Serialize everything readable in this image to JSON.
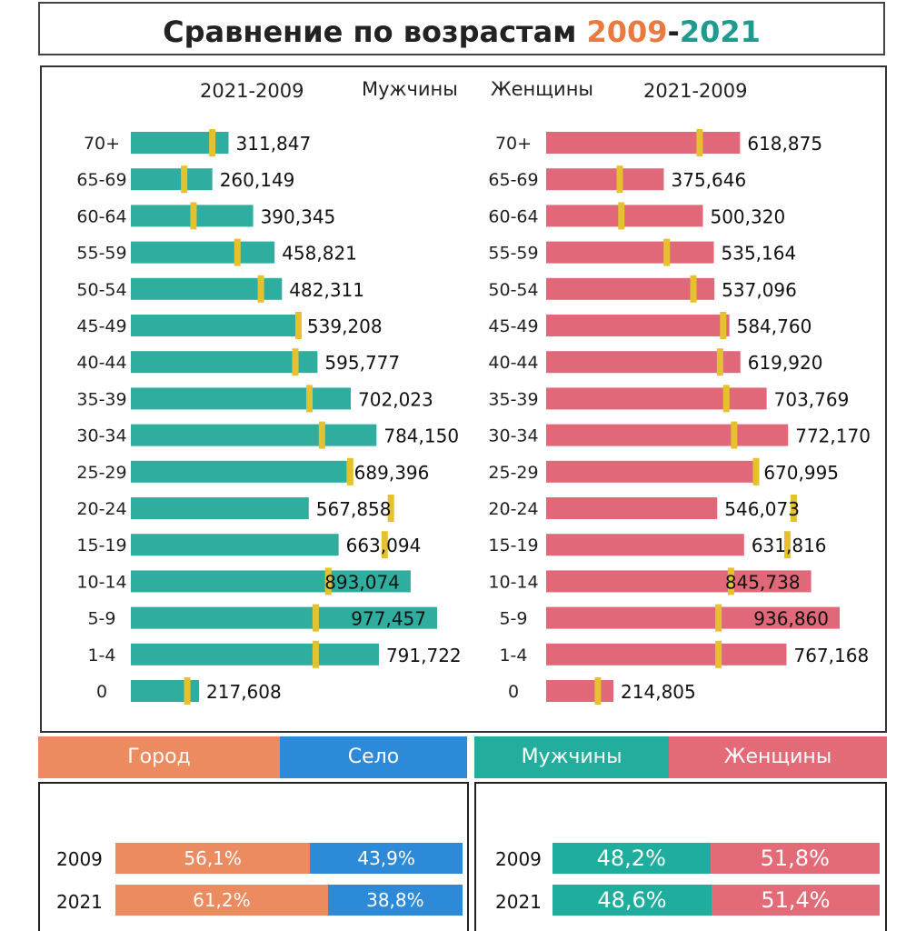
{
  "title": {
    "prefix": "Сравнение по возрастам ",
    "year_a": "2009",
    "dash": "-",
    "year_b": "2021"
  },
  "colors": {
    "men": "#2fae9f",
    "women": "#e06878",
    "marker": "#e6c12e",
    "city": "#eb8b5f",
    "village": "#2d8ad8",
    "year_a": "#e8793f",
    "year_b": "#1f9a8e"
  },
  "headers": {
    "left_years": "2021-2009",
    "men": "Мужчины",
    "women": "Женщины",
    "right_years": "2021-2009"
  },
  "legends": {
    "residence": {
      "city": "Город",
      "village": "Село"
    },
    "sex": {
      "men": "Мужчины",
      "women": "Женщины"
    }
  },
  "residence_share": {
    "rows": [
      {
        "year": "2009",
        "city": "56,1%",
        "village": "43,9%",
        "city_value": 56.1
      },
      {
        "year": "2021",
        "city": "61,2%",
        "village": "38,8%",
        "city_value": 61.2
      }
    ]
  },
  "sex_share": {
    "rows": [
      {
        "year": "2009",
        "men": "48,2%",
        "women": "51,8%",
        "men_value": 48.2
      },
      {
        "year": "2021",
        "men": "48,6%",
        "women": "51,4%",
        "men_value": 48.6
      }
    ]
  },
  "chart_data": {
    "type": "bar",
    "categories": [
      "70+",
      "65-69",
      "60-64",
      "55-59",
      "50-54",
      "45-49",
      "40-44",
      "35-39",
      "30-34",
      "25-29",
      "20-24",
      "15-19",
      "10-14",
      "5-9",
      "1-4",
      "0"
    ],
    "series": [
      {
        "name": "Мужчины",
        "values": [
          311847,
          260149,
          390345,
          458821,
          482311,
          539208,
          595777,
          702023,
          784150,
          689396,
          567858,
          663094,
          893074,
          977457,
          791722,
          217608
        ],
        "labels": [
          "311,847",
          "260,149",
          "390,345",
          "458,821",
          "482,311",
          "539,208",
          "595,777",
          "702,023",
          "784,150",
          "689,396",
          "567,858",
          "663,094",
          "893,074",
          "977,457",
          "791,722",
          "217,608"
        ],
        "values_2009": [
          260000,
          170000,
          200000,
          340000,
          415000,
          535000,
          525000,
          570000,
          610000,
          700000,
          830000,
          810000,
          630000,
          590000,
          590000,
          180000
        ]
      },
      {
        "name": "Женщины",
        "values": [
          618875,
          375646,
          500320,
          535164,
          537096,
          584760,
          619920,
          703769,
          772170,
          670995,
          546073,
          631816,
          845738,
          936860,
          767168,
          214805
        ],
        "labels": [
          "618,875",
          "375,646",
          "500,320",
          "535,164",
          "537,096",
          "584,760",
          "619,920",
          "703,769",
          "772,170",
          "670,995",
          "546,073",
          "631,816",
          "845,738",
          "936,860",
          "767,168",
          "214,805"
        ],
        "values_2009": [
          490000,
          235000,
          240000,
          385000,
          470000,
          565000,
          555000,
          575000,
          600000,
          670000,
          790000,
          770000,
          590000,
          550000,
          550000,
          165000
        ]
      }
    ]
  }
}
